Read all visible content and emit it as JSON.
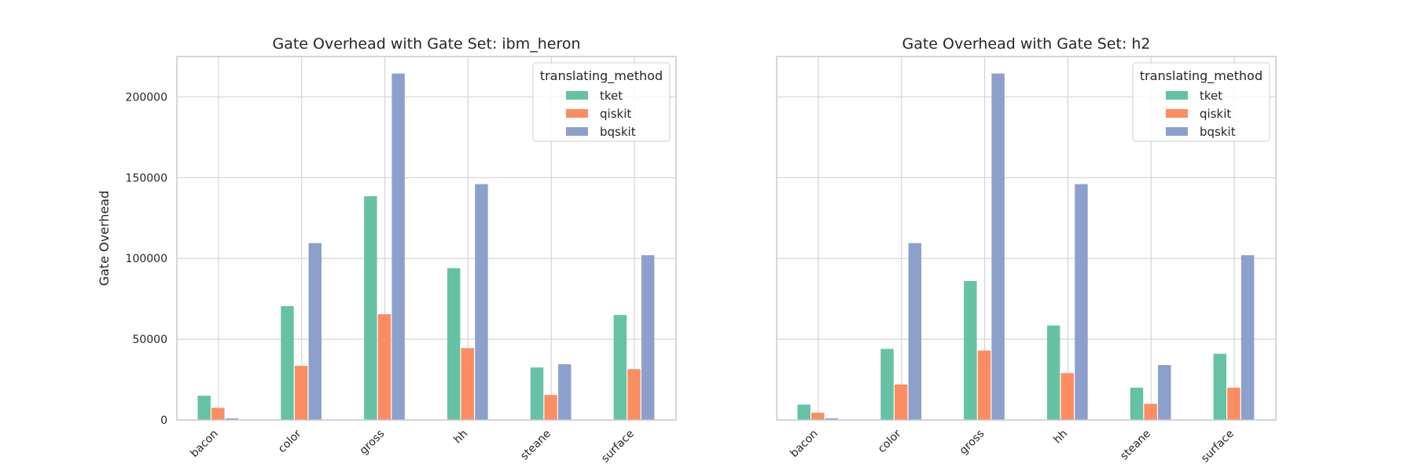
{
  "chart_data": [
    {
      "type": "bar",
      "title": "Gate Overhead with Gate Set: ibm_heron",
      "xlabel": "",
      "ylabel": "Gate Overhead",
      "categories": [
        "bacon",
        "color",
        "gross",
        "hh",
        "steane",
        "surface"
      ],
      "series": [
        {
          "name": "tket",
          "values": [
            15000,
            70500,
            138500,
            94000,
            32500,
            65000
          ]
        },
        {
          "name": "qiskit",
          "values": [
            7500,
            33500,
            65500,
            44500,
            15500,
            31500
          ]
        },
        {
          "name": "bqskit",
          "values": [
            1000,
            109500,
            214500,
            146000,
            34500,
            102000
          ]
        }
      ],
      "ylim": [
        0,
        225000
      ],
      "yticks": [
        "0",
        "50000",
        "100000",
        "150000",
        "200000"
      ],
      "legend": {
        "title": "translating_method",
        "position": "top-right"
      },
      "grid": true
    },
    {
      "type": "bar",
      "title": "Gate Overhead with Gate Set: h2",
      "xlabel": "",
      "ylabel": "",
      "categories": [
        "bacon",
        "color",
        "gross",
        "hh",
        "steane",
        "surface"
      ],
      "series": [
        {
          "name": "tket",
          "values": [
            9500,
            44000,
            86000,
            58500,
            20000,
            41000
          ]
        },
        {
          "name": "qiskit",
          "values": [
            4500,
            22000,
            43000,
            29000,
            10000,
            20000
          ]
        },
        {
          "name": "bqskit",
          "values": [
            1000,
            109500,
            214500,
            146000,
            34000,
            102000
          ]
        }
      ],
      "ylim": [
        0,
        225000
      ],
      "yticks": [],
      "legend": {
        "title": "translating_method",
        "position": "top-right"
      },
      "grid": true
    }
  ],
  "colors": {
    "tket": "#66c2a5",
    "qiskit": "#fc8d62",
    "bqskit": "#8da0cb",
    "grid": "#d4d4dc",
    "frame": "#c8c8d0"
  }
}
